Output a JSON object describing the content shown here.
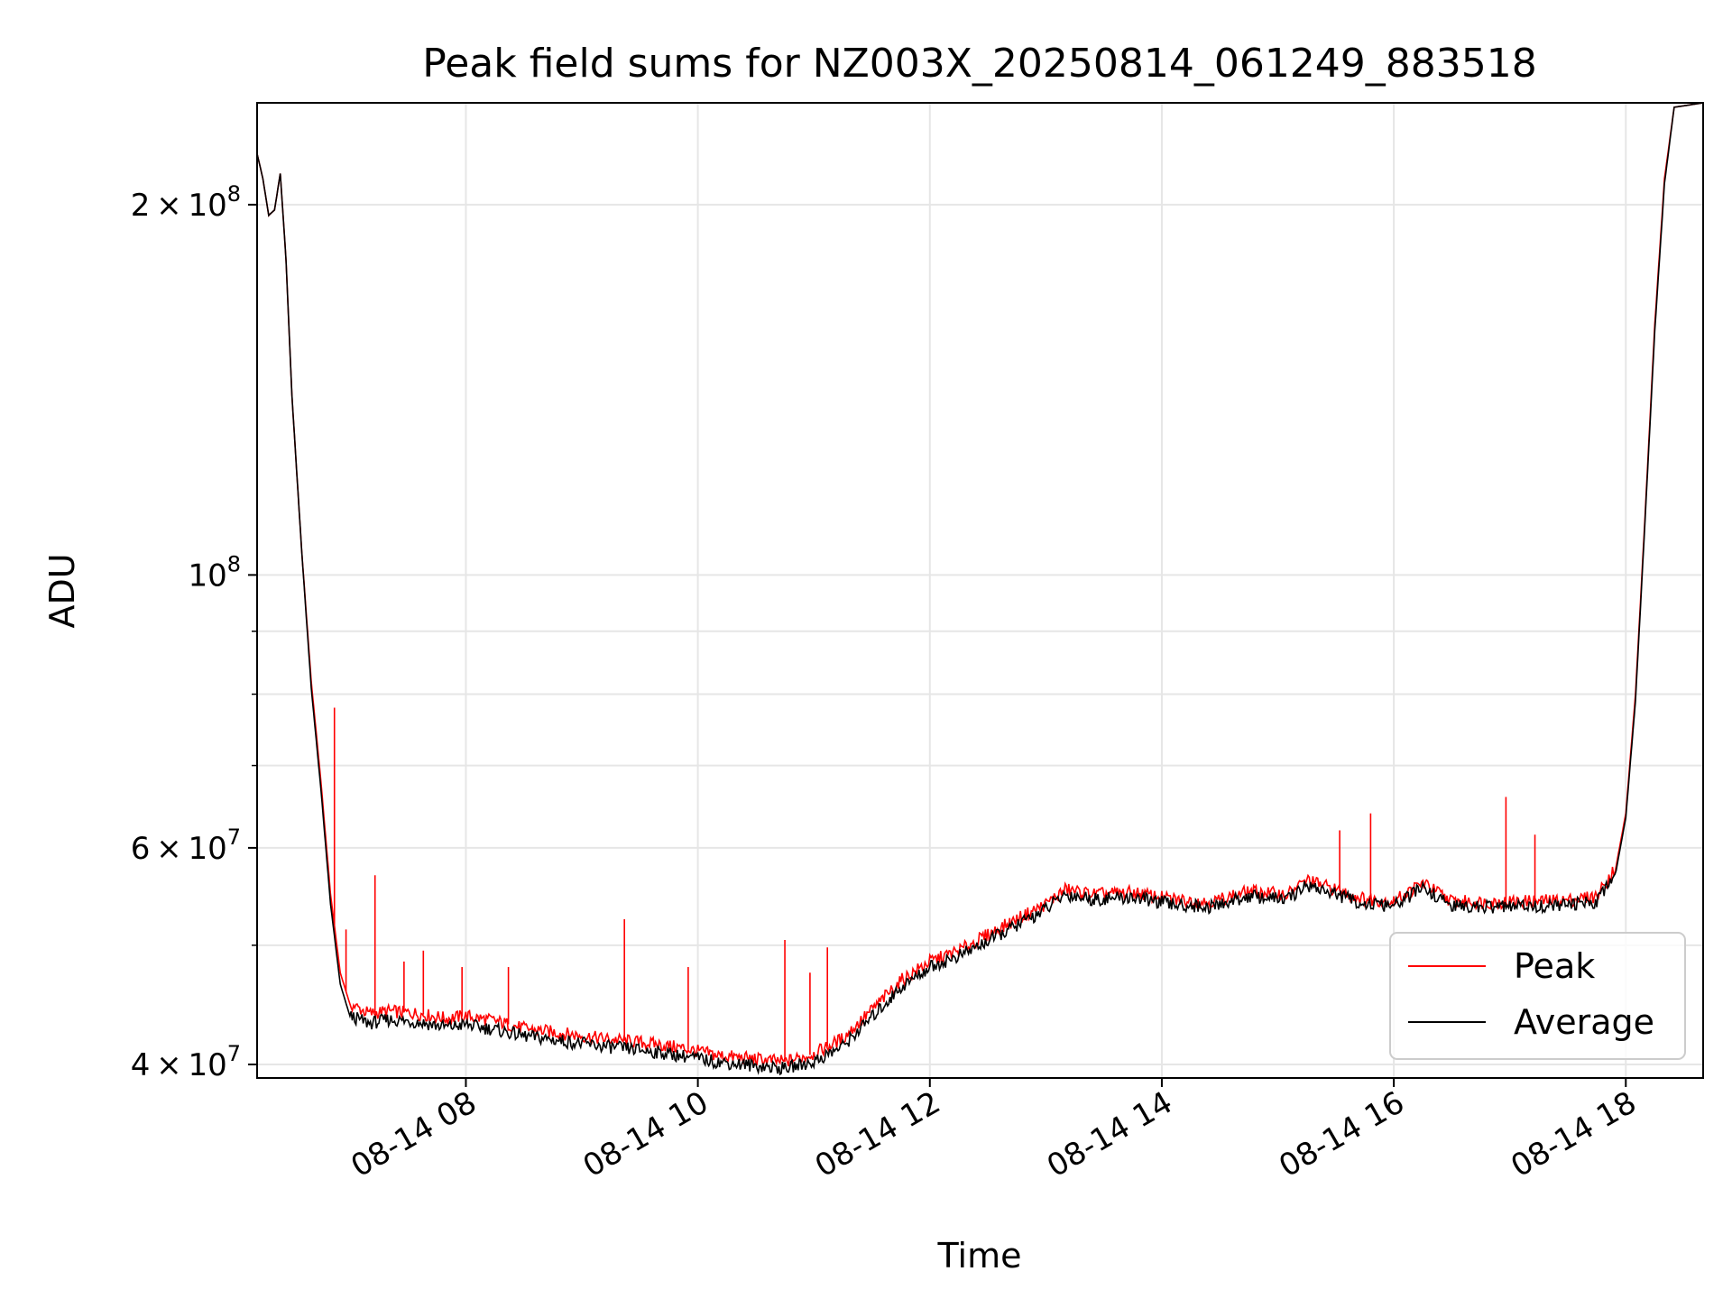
{
  "chart_data": {
    "type": "line",
    "title": "Peak field sums for NZ003X_20250814_061249_883518",
    "xlabel": "Time",
    "ylabel": "ADU",
    "yscale": "log",
    "grid": true,
    "legend_position": "lower-right",
    "xlim": [
      "08-14 06:12",
      "08-14 18:40"
    ],
    "ylim": [
      39000000,
      242000000
    ],
    "x_ticks": [
      {
        "value": "08-14 08:00",
        "label": "08-14 08"
      },
      {
        "value": "08-14 10:00",
        "label": "08-14 10"
      },
      {
        "value": "08-14 12:00",
        "label": "08-14 12"
      },
      {
        "value": "08-14 14:00",
        "label": "08-14 14"
      },
      {
        "value": "08-14 16:00",
        "label": "08-14 16"
      },
      {
        "value": "08-14 18:00",
        "label": "08-14 18"
      }
    ],
    "y_major_ticks": [
      {
        "value": 40000000,
        "base": "4",
        "sup": "7"
      },
      {
        "value": 60000000,
        "base": "6",
        "sup": "7"
      },
      {
        "value": 100000000,
        "base": "",
        "sup": "8"
      },
      {
        "value": 200000000,
        "base": "2",
        "sup": "8"
      }
    ],
    "y_minor_ticks": [
      50000000,
      70000000,
      80000000,
      90000000
    ],
    "series": [
      {
        "name": "Peak",
        "color": "#ff0000",
        "points": [
          [
            "08-14 06:12",
            220000000
          ],
          [
            "08-14 06:15",
            210000000
          ],
          [
            "08-14 06:18",
            196000000
          ],
          [
            "08-14 06:21",
            198000000
          ],
          [
            "08-14 06:24",
            212000000
          ],
          [
            "08-14 06:27",
            180000000
          ],
          [
            "08-14 06:30",
            140000000
          ],
          [
            "08-14 06:35",
            105000000
          ],
          [
            "08-14 06:40",
            82000000
          ],
          [
            "08-14 06:45",
            68000000
          ],
          [
            "08-14 06:50",
            55000000
          ],
          [
            "08-14 06:55",
            47500000
          ],
          [
            "08-14 07:00",
            44800000
          ],
          [
            "08-14 07:10",
            44000000
          ],
          [
            "08-14 07:20",
            44200000
          ],
          [
            "08-14 07:35",
            44000000
          ],
          [
            "08-14 07:50",
            43600000
          ],
          [
            "08-14 08:00",
            43800000
          ],
          [
            "08-14 08:15",
            43400000
          ],
          [
            "08-14 08:30",
            42800000
          ],
          [
            "08-14 08:50",
            42400000
          ],
          [
            "08-14 09:10",
            42000000
          ],
          [
            "08-14 09:30",
            41700000
          ],
          [
            "08-14 09:50",
            41300000
          ],
          [
            "08-14 10:10",
            40700000
          ],
          [
            "08-14 10:30",
            40400000
          ],
          [
            "08-14 10:45",
            40200000
          ],
          [
            "08-14 11:00",
            40800000
          ],
          [
            "08-14 11:15",
            42000000
          ],
          [
            "08-14 11:30",
            44300000
          ],
          [
            "08-14 11:45",
            46800000
          ],
          [
            "08-14 12:00",
            48500000
          ],
          [
            "08-14 12:15",
            49500000
          ],
          [
            "08-14 12:30",
            51000000
          ],
          [
            "08-14 12:45",
            52500000
          ],
          [
            "08-14 13:00",
            54000000
          ],
          [
            "08-14 13:10",
            55500000
          ],
          [
            "08-14 13:25",
            55000000
          ],
          [
            "08-14 13:45",
            55200000
          ],
          [
            "08-14 14:05",
            54500000
          ],
          [
            "08-14 14:25",
            54200000
          ],
          [
            "08-14 14:45",
            55300000
          ],
          [
            "08-14 15:05",
            55000000
          ],
          [
            "08-14 15:15",
            56500000
          ],
          [
            "08-14 15:30",
            55500000
          ],
          [
            "08-14 15:45",
            54500000
          ],
          [
            "08-14 16:00",
            54300000
          ],
          [
            "08-14 16:15",
            56200000
          ],
          [
            "08-14 16:30",
            54300000
          ],
          [
            "08-14 16:50",
            54200000
          ],
          [
            "08-14 17:10",
            54300000
          ],
          [
            "08-14 17:30",
            54400000
          ],
          [
            "08-14 17:45",
            54800000
          ],
          [
            "08-14 17:55",
            58000000
          ],
          [
            "08-14 18:00",
            64000000
          ],
          [
            "08-14 18:05",
            80000000
          ],
          [
            "08-14 18:10",
            112000000
          ],
          [
            "08-14 18:15",
            160000000
          ],
          [
            "08-14 18:20",
            210000000
          ],
          [
            "08-14 18:25",
            240000000
          ],
          [
            "08-14 18:40",
            242000000
          ]
        ],
        "spikes": [
          [
            "08-14 06:52",
            78000000
          ],
          [
            "08-14 06:58",
            51500000
          ],
          [
            "08-14 07:13",
            57000000
          ],
          [
            "08-14 07:28",
            48500000
          ],
          [
            "08-14 07:38",
            49500000
          ],
          [
            "08-14 07:58",
            48000000
          ],
          [
            "08-14 08:22",
            48000000
          ],
          [
            "08-14 09:22",
            52500000
          ],
          [
            "08-14 09:55",
            48000000
          ],
          [
            "08-14 10:45",
            50500000
          ],
          [
            "08-14 10:58",
            47500000
          ],
          [
            "08-14 11:07",
            49800000
          ],
          [
            "08-14 15:32",
            62000000
          ],
          [
            "08-14 15:48",
            64000000
          ],
          [
            "08-14 16:58",
            66000000
          ],
          [
            "08-14 17:13",
            61500000
          ]
        ]
      },
      {
        "name": "Average",
        "color": "#000000",
        "points": [
          [
            "08-14 06:12",
            220000000
          ],
          [
            "08-14 06:15",
            210000000
          ],
          [
            "08-14 06:18",
            196000000
          ],
          [
            "08-14 06:21",
            198000000
          ],
          [
            "08-14 06:24",
            212000000
          ],
          [
            "08-14 06:27",
            180000000
          ],
          [
            "08-14 06:30",
            140000000
          ],
          [
            "08-14 06:35",
            105000000
          ],
          [
            "08-14 06:40",
            81000000
          ],
          [
            "08-14 06:45",
            67000000
          ],
          [
            "08-14 06:50",
            54000000
          ],
          [
            "08-14 06:55",
            46500000
          ],
          [
            "08-14 07:00",
            43800000
          ],
          [
            "08-14 07:10",
            43200000
          ],
          [
            "08-14 07:20",
            43500000
          ],
          [
            "08-14 07:35",
            43300000
          ],
          [
            "08-14 07:50",
            42900000
          ],
          [
            "08-14 08:00",
            43100000
          ],
          [
            "08-14 08:15",
            42700000
          ],
          [
            "08-14 08:30",
            42200000
          ],
          [
            "08-14 08:50",
            41800000
          ],
          [
            "08-14 09:10",
            41400000
          ],
          [
            "08-14 09:30",
            41100000
          ],
          [
            "08-14 09:50",
            40700000
          ],
          [
            "08-14 10:10",
            40200000
          ],
          [
            "08-14 10:30",
            39900000
          ],
          [
            "08-14 10:45",
            39700000
          ],
          [
            "08-14 11:00",
            40200000
          ],
          [
            "08-14 11:15",
            41400000
          ],
          [
            "08-14 11:30",
            43700000
          ],
          [
            "08-14 11:45",
            46200000
          ],
          [
            "08-14 12:00",
            48000000
          ],
          [
            "08-14 12:15",
            49000000
          ],
          [
            "08-14 12:30",
            50400000
          ],
          [
            "08-14 12:45",
            51900000
          ],
          [
            "08-14 13:00",
            53500000
          ],
          [
            "08-14 13:10",
            55000000
          ],
          [
            "08-14 13:25",
            54500000
          ],
          [
            "08-14 13:45",
            54700000
          ],
          [
            "08-14 14:05",
            54000000
          ],
          [
            "08-14 14:25",
            53700000
          ],
          [
            "08-14 14:45",
            54800000
          ],
          [
            "08-14 15:05",
            54500000
          ],
          [
            "08-14 15:15",
            56000000
          ],
          [
            "08-14 15:30",
            55000000
          ],
          [
            "08-14 15:45",
            54000000
          ],
          [
            "08-14 16:00",
            53800000
          ],
          [
            "08-14 16:15",
            55700000
          ],
          [
            "08-14 16:30",
            53800000
          ],
          [
            "08-14 16:50",
            53700000
          ],
          [
            "08-14 17:10",
            53800000
          ],
          [
            "08-14 17:30",
            53900000
          ],
          [
            "08-14 17:45",
            54300000
          ],
          [
            "08-14 17:55",
            57500000
          ],
          [
            "08-14 18:00",
            63500000
          ],
          [
            "08-14 18:05",
            79000000
          ],
          [
            "08-14 18:10",
            111000000
          ],
          [
            "08-14 18:15",
            158000000
          ],
          [
            "08-14 18:20",
            208000000
          ],
          [
            "08-14 18:25",
            240000000
          ],
          [
            "08-14 18:40",
            242000000
          ]
        ]
      }
    ]
  }
}
